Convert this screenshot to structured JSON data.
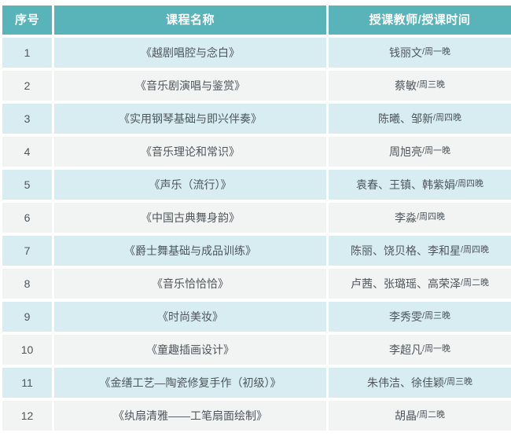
{
  "colors": {
    "header_bg": "#58b4b9",
    "header_text": "#ffffff",
    "row_odd_bg": "#d7edf2",
    "row_even_bg": "#f1f4f2",
    "body_text": "#4e565c",
    "page_bg": "#ffffff"
  },
  "table": {
    "headers": [
      "序号",
      "课程名称",
      "授课教师/授课时间"
    ],
    "rows": [
      {
        "no": "1",
        "course": "《越剧唱腔与念白》",
        "teachers": "钱丽文",
        "time": "/周一晚"
      },
      {
        "no": "2",
        "course": "《音乐剧演唱与鉴赏》",
        "teachers": "蔡敏",
        "time": "/周三晚"
      },
      {
        "no": "3",
        "course": "《实用钢琴基础与即兴伴奏》",
        "teachers": "陈曦、邹新",
        "time": "/周四晚"
      },
      {
        "no": "4",
        "course": "《音乐理论和常识》",
        "teachers": "周旭亮",
        "time": "/周一晚"
      },
      {
        "no": "5",
        "course": "《声乐（流行）》",
        "teachers": "袁春、王镇、韩紫娟",
        "time": "/周四晚"
      },
      {
        "no": "6",
        "course": "《中国古典舞身韵》",
        "teachers": "李淼",
        "time": "/周四晚"
      },
      {
        "no": "7",
        "course": "《爵士舞基础与成品训练》",
        "teachers": "陈丽、饶贝格、李和星",
        "time": "/周四晚"
      },
      {
        "no": "8",
        "course": "《音乐恰恰恰》",
        "teachers": "卢茜、张璐瑶、高荣泽",
        "time": "/周二晚"
      },
      {
        "no": "9",
        "course": "《时尚美妆》",
        "teachers": "李秀雯",
        "time": "/周三晚"
      },
      {
        "no": "10",
        "course": "《童趣插画设计》",
        "teachers": "李超凡",
        "time": "/周一晚"
      },
      {
        "no": "11",
        "course": "《金缮工艺—陶瓷修复手作（初级）》",
        "teachers": "朱伟洁、徐佳颖",
        "time": "/周三晚"
      },
      {
        "no": "12",
        "course": "《纨扇清雅——工笔扇面绘制》",
        "teachers": "胡晶",
        "time": "/周二晚"
      }
    ]
  }
}
